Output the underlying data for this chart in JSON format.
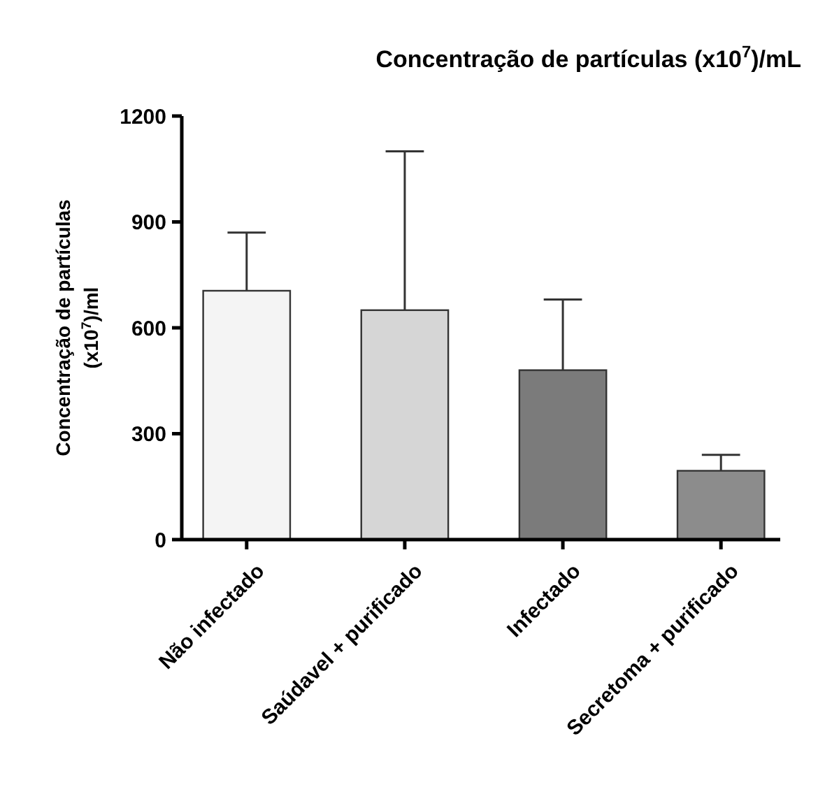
{
  "chart_data": {
    "type": "bar",
    "title": "Concentração de partículas (x10$^{7}$)/mL",
    "ylabel": "Concentração de partículas (x10$^{7}$)/ml",
    "categories": [
      "Não infectado",
      "Saúdavel + purificado",
      "Infectado",
      "Secretoma + purificado"
    ],
    "values": [
      705,
      650,
      480,
      195
    ],
    "colors": [
      "#f4f4f4",
      "#d6d6d6",
      "#7b7b7b",
      "#8c8c8c"
    ],
    "errors": [
      [
        705,
        870
      ],
      [
        650,
        1100
      ],
      [
        480,
        680
      ],
      [
        195,
        240
      ]
    ],
    "ylim": [
      0,
      1200
    ],
    "yticks": [
      0,
      300,
      600,
      900,
      1200
    ],
    "grid": false
  }
}
